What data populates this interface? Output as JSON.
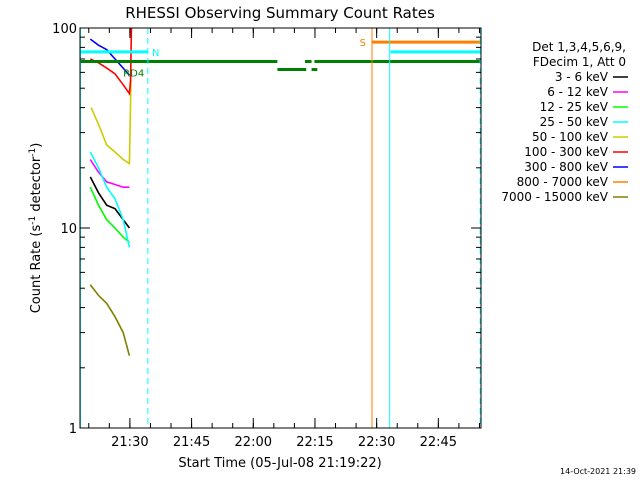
{
  "chart_data": {
    "type": "line",
    "title": "RHESSI Observing Summary Count Rates",
    "xlabel": "Start Time (05-Jul-08 21:19:22)",
    "ylabel_main": "Count Rate (s",
    "ylabel_sup1": "-1",
    "ylabel_mid": " detector",
    "ylabel_sup2": "-1",
    "ylabel_end": ")",
    "yscale": "log",
    "ylim": [
      1,
      100
    ],
    "xlim_minutes": [
      -1.5,
      96.0
    ],
    "y_ticks": [
      {
        "value": 1,
        "label": "1"
      },
      {
        "value": 10,
        "label": "10"
      },
      {
        "value": 100,
        "label": "100"
      }
    ],
    "x_ticks": [
      {
        "minute": 10.63,
        "label": "21:30"
      },
      {
        "minute": 25.63,
        "label": "21:45"
      },
      {
        "minute": 40.63,
        "label": "22:00"
      },
      {
        "minute": 55.63,
        "label": "22:15"
      },
      {
        "minute": 70.63,
        "label": "22:30"
      },
      {
        "minute": 85.63,
        "label": "22:45"
      }
    ],
    "legend": {
      "header": [
        "Det 1,3,4,5,6,9,",
        "FDecim 1, Att 0"
      ],
      "placement": "right",
      "entries": [
        {
          "label": "3 - 6 keV",
          "color": "#000000"
        },
        {
          "label": "6 - 12 keV",
          "color": "#ff00ff"
        },
        {
          "label": "12 - 25 keV",
          "color": "#00ff00"
        },
        {
          "label": "25 - 50 keV",
          "color": "#00ffff"
        },
        {
          "label": "50 - 100 keV",
          "color": "#cccc00"
        },
        {
          "label": "100 - 300 keV",
          "color": "#ff0000"
        },
        {
          "label": "300 - 800 keV",
          "color": "#0000ff"
        },
        {
          "label": "800 - 7000 keV",
          "color": "#ff8000"
        },
        {
          "label": "7000 - 15000 keV",
          "color": "#808000"
        }
      ]
    },
    "series": [
      {
        "name": "3 - 6 keV",
        "color": "#000000",
        "points": [
          [
            1.0,
            18
          ],
          [
            3.0,
            15
          ],
          [
            5.0,
            13
          ],
          [
            7.0,
            12.5
          ],
          [
            9.0,
            11
          ],
          [
            10.5,
            10
          ]
        ]
      },
      {
        "name": "6 - 12 keV",
        "color": "#ff00ff",
        "points": [
          [
            1.0,
            22
          ],
          [
            3.0,
            19
          ],
          [
            5.0,
            17
          ],
          [
            7.0,
            16.5
          ],
          [
            9.0,
            16
          ],
          [
            10.5,
            16
          ]
        ]
      },
      {
        "name": "12 - 25 keV",
        "color": "#00ff00",
        "points": [
          [
            1.0,
            16
          ],
          [
            3.0,
            13
          ],
          [
            5.0,
            11
          ],
          [
            7.0,
            10
          ],
          [
            9.0,
            9
          ],
          [
            10.5,
            8.5
          ]
        ]
      },
      {
        "name": "25 - 50 keV",
        "color": "#00ffff",
        "points": [
          [
            1.0,
            24
          ],
          [
            3.0,
            20
          ],
          [
            5.0,
            16
          ],
          [
            7.0,
            14
          ],
          [
            9.0,
            11
          ],
          [
            10.5,
            8
          ]
        ]
      },
      {
        "name": "50 - 100 keV",
        "color": "#cccc00",
        "points": [
          [
            1.2,
            40
          ],
          [
            3.0,
            33
          ],
          [
            5.0,
            26
          ],
          [
            7.0,
            24
          ],
          [
            9.0,
            22
          ],
          [
            10.5,
            21
          ],
          [
            10.9,
            55
          ]
        ]
      },
      {
        "name": "100 - 300 keV",
        "color": "#ff0000",
        "points": [
          [
            1.0,
            70
          ],
          [
            3.0,
            67
          ],
          [
            5.0,
            63
          ],
          [
            7.0,
            59
          ],
          [
            9.0,
            52
          ],
          [
            10.5,
            47
          ],
          [
            10.8,
            55
          ],
          [
            11.0,
            100
          ]
        ]
      },
      {
        "name": "300 - 800 keV",
        "color": "#0000ff",
        "points": [
          [
            1.0,
            88
          ],
          [
            3.0,
            82
          ],
          [
            5.0,
            78
          ],
          [
            7.0,
            70
          ],
          [
            9.0,
            63
          ],
          [
            10.5,
            58
          ]
        ]
      },
      {
        "name": "7000 - 15000 keV",
        "color": "#808000",
        "points": [
          [
            1.0,
            5.2
          ],
          [
            3.0,
            4.6
          ],
          [
            5.0,
            4.2
          ],
          [
            7.0,
            3.6
          ],
          [
            9.0,
            3.0
          ],
          [
            10.5,
            2.3
          ]
        ]
      }
    ],
    "state_bars": [
      {
        "color": "#00ffff",
        "y": 76,
        "start": -1.5,
        "end": 15.0
      },
      {
        "color": "#008000",
        "y": 68,
        "start": -1.5,
        "end": 46.5
      },
      {
        "color": "#008000",
        "y": 68,
        "start": 53.2,
        "end": 54.8
      },
      {
        "color": "#008000",
        "y": 68,
        "start": 55.5,
        "end": 96.0
      },
      {
        "color": "#008000",
        "y": 62,
        "start": 46.5,
        "end": 53.5
      },
      {
        "color": "#008000",
        "y": 62,
        "start": 54.8,
        "end": 56.2
      },
      {
        "color": "#ff8000",
        "y": 85,
        "start": 69.5,
        "end": 96.0
      },
      {
        "color": "#00ffff",
        "y": 76,
        "start": 74.0,
        "end": 96.0
      }
    ],
    "vlines": [
      {
        "minute": -1.4,
        "color": "#00ffff",
        "style": "solid"
      },
      {
        "minute": 15.0,
        "color": "#00ffff",
        "style": "dashed"
      },
      {
        "minute": 69.5,
        "color": "#ff8000",
        "style": "solid"
      },
      {
        "minute": 73.8,
        "color": "#00ffff",
        "style": "solid"
      },
      {
        "minute": 95.8,
        "color": "#00ffff",
        "style": "dashed"
      },
      {
        "minute": 96.0,
        "color": "#ff8000",
        "style": "dashed"
      }
    ],
    "annotations": [
      {
        "text": "N",
        "minute": 16.0,
        "value": 76,
        "color": "#00ffff"
      },
      {
        "text": "RD4",
        "minute": 9.0,
        "value": 60,
        "color": "#008000"
      },
      {
        "text": "S",
        "minute": 66.5,
        "value": 85,
        "color": "#ff8000"
      }
    ],
    "timestamp": "14-Oct-2021 21:39"
  }
}
